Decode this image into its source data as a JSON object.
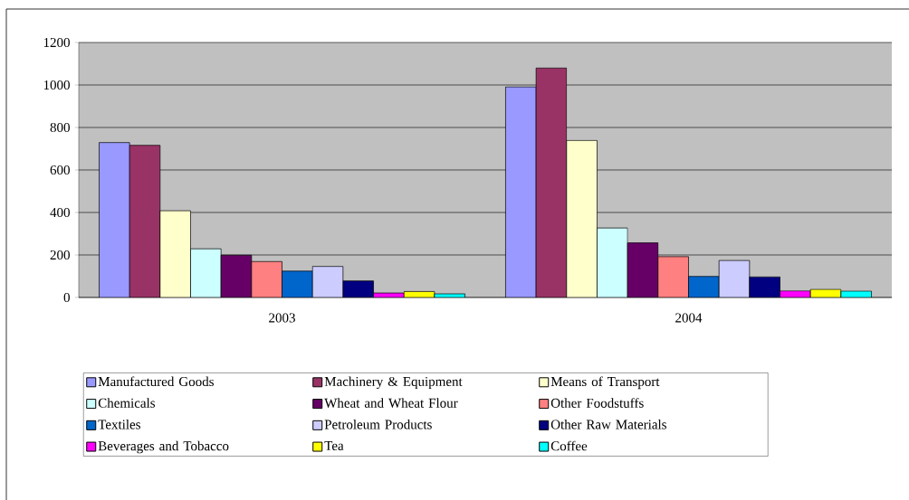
{
  "chart_data": {
    "type": "bar",
    "categories": [
      "2003",
      "2004"
    ],
    "series": [
      {
        "name": "Manufactured Goods",
        "color": "#9999ff",
        "values": [
          729,
          991
        ]
      },
      {
        "name": "Machinery & Equipment",
        "color": "#993366",
        "values": [
          716,
          1080
        ]
      },
      {
        "name": "Means of Transport",
        "color": "#ffffcc",
        "values": [
          408,
          739
        ]
      },
      {
        "name": "Chemicals",
        "color": "#ccffff",
        "values": [
          229,
          327
        ]
      },
      {
        "name": "Wheat and Wheat Flour",
        "color": "#660066",
        "values": [
          199,
          257
        ]
      },
      {
        "name": "Other Foodstuffs",
        "color": "#ff8080",
        "values": [
          169,
          192
        ]
      },
      {
        "name": "Textiles",
        "color": "#0066cc",
        "values": [
          124,
          99
        ]
      },
      {
        "name": "Petroleum Products",
        "color": "#ccccff",
        "values": [
          146,
          174
        ]
      },
      {
        "name": "Other Raw Materials",
        "color": "#000080",
        "values": [
          78,
          97
        ]
      },
      {
        "name": "Beverages and Tobacco",
        "color": "#ff00ff",
        "values": [
          21,
          31
        ]
      },
      {
        "name": "Tea",
        "color": "#ffff00",
        "values": [
          28,
          38
        ]
      },
      {
        "name": "Coffee",
        "color": "#00ffff",
        "values": [
          17,
          30
        ]
      }
    ],
    "ylim": [
      0,
      1200
    ],
    "yticks": [
      0,
      200,
      400,
      600,
      800,
      1000,
      1200
    ],
    "grid": "y",
    "legend": "bottom"
  }
}
